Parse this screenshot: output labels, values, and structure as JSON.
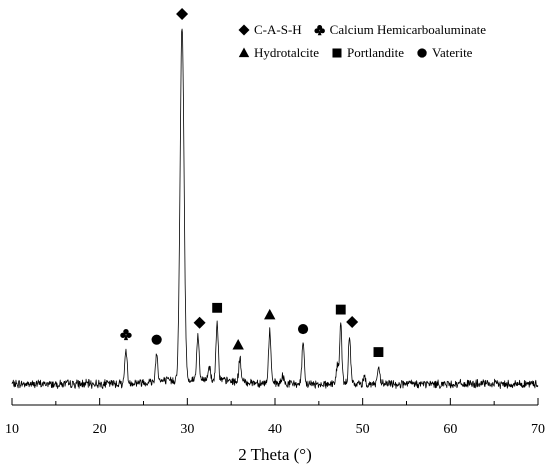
{
  "chart_data": {
    "type": "line",
    "title": "",
    "xlabel": "2 Theta (°)",
    "ylabel": "",
    "xlim": [
      10,
      70
    ],
    "ylim": [
      0,
      1000
    ],
    "x_ticks": [
      10,
      20,
      30,
      40,
      50,
      60,
      70
    ],
    "grid": false,
    "legend_position": "top-right",
    "legend": [
      {
        "shape": "diamond",
        "label": "C-A-S-H"
      },
      {
        "shape": "club",
        "label": "Calcium Hemicarboaluminate"
      },
      {
        "shape": "triangle",
        "label": "Hydrotalcite"
      },
      {
        "shape": "square",
        "label": "Portlandite"
      },
      {
        "shape": "circle",
        "label": "Vaterite"
      }
    ],
    "series": [
      {
        "peaks": [
          {
            "x": 23.0,
            "height": 95
          },
          {
            "x": 26.5,
            "height": 80
          },
          {
            "x": 29.4,
            "height": 1000
          },
          {
            "x": 31.2,
            "height": 128
          },
          {
            "x": 32.5,
            "height": 40
          },
          {
            "x": 33.4,
            "height": 170
          },
          {
            "x": 36.0,
            "height": 65
          },
          {
            "x": 39.4,
            "height": 150
          },
          {
            "x": 40.9,
            "height": 20
          },
          {
            "x": 43.2,
            "height": 110
          },
          {
            "x": 47.1,
            "height": 50
          },
          {
            "x": 47.5,
            "height": 165
          },
          {
            "x": 48.5,
            "height": 130
          },
          {
            "x": 50.2,
            "height": 20
          },
          {
            "x": 51.8,
            "height": 45
          }
        ]
      }
    ],
    "peak_annotations": [
      {
        "x": 23.0,
        "shape": "club"
      },
      {
        "x": 26.5,
        "shape": "circle"
      },
      {
        "x": 29.4,
        "shape": "diamond"
      },
      {
        "x": 31.4,
        "shape": "diamond"
      },
      {
        "x": 33.4,
        "shape": "square"
      },
      {
        "x": 35.8,
        "shape": "triangle"
      },
      {
        "x": 39.4,
        "shape": "triangle"
      },
      {
        "x": 43.2,
        "shape": "circle"
      },
      {
        "x": 47.5,
        "shape": "square"
      },
      {
        "x": 48.8,
        "shape": "diamond"
      },
      {
        "x": 51.8,
        "shape": "square"
      }
    ],
    "colors": {
      "line": "#000000",
      "markers": "#000000"
    }
  }
}
